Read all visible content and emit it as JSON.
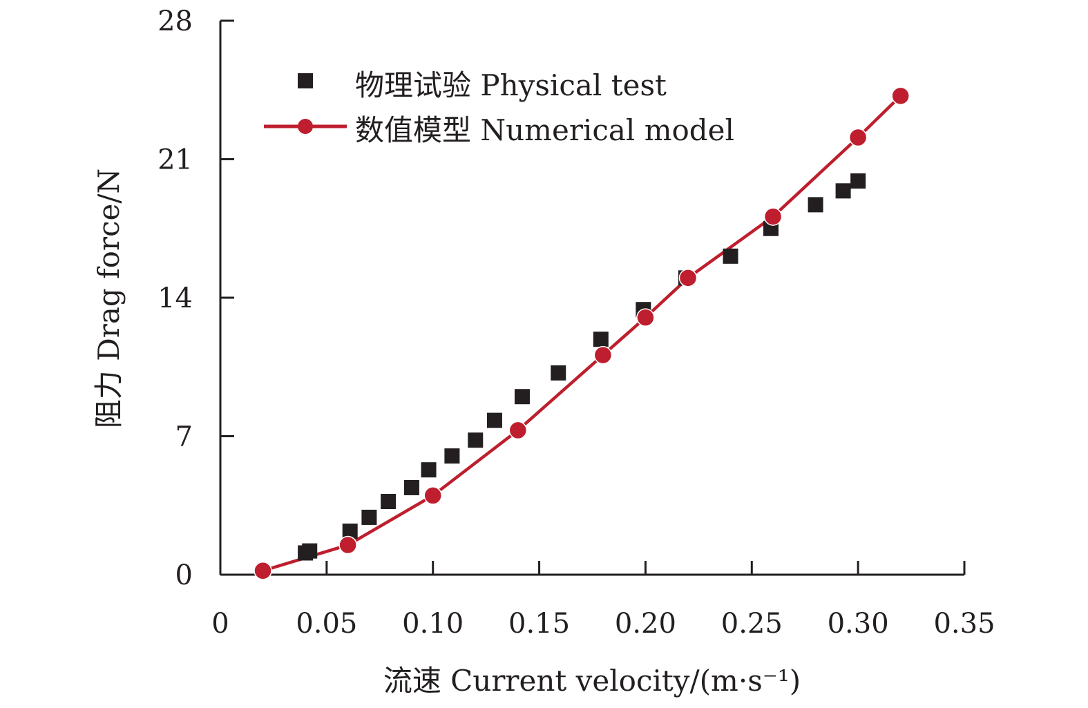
{
  "chart_data": {
    "type": "scatter",
    "title": "",
    "xlabel": "流速 Current velocity/(m·s⁻¹)",
    "ylabel": "阻力 Drag force/N",
    "xlim": [
      0,
      0.35
    ],
    "ylim": [
      0,
      28
    ],
    "xticks": [
      0,
      0.05,
      0.1,
      0.15,
      0.2,
      0.25,
      0.3,
      0.35
    ],
    "xtick_labels": [
      "0",
      "0.05",
      "0.10",
      "0.15",
      "0.20",
      "0.25",
      "0.30",
      "0.35"
    ],
    "yticks": [
      0,
      7,
      14,
      21,
      28
    ],
    "ytick_labels": [
      "0",
      "7",
      "14",
      "21",
      "28"
    ],
    "grid": false,
    "legend_position": "top-left",
    "series": [
      {
        "name": "物理试验 Physical test",
        "marker": "square",
        "line": false,
        "color": "#231f20",
        "x": [
          0.04,
          0.042,
          0.061,
          0.07,
          0.079,
          0.09,
          0.098,
          0.109,
          0.12,
          0.129,
          0.142,
          0.159,
          0.179,
          0.199,
          0.219,
          0.24,
          0.259,
          0.28,
          0.293,
          0.3
        ],
        "y": [
          1.1,
          1.2,
          2.2,
          2.9,
          3.7,
          4.4,
          5.3,
          6.0,
          6.8,
          7.8,
          9.0,
          10.2,
          11.9,
          13.4,
          15.0,
          16.1,
          17.5,
          18.7,
          19.4,
          19.9
        ]
      },
      {
        "name": "数值模型 Numerical model",
        "marker": "circle",
        "line": true,
        "color": "#be1e2d",
        "x": [
          0.02,
          0.06,
          0.1,
          0.14,
          0.18,
          0.2,
          0.22,
          0.26,
          0.3,
          0.32
        ],
        "y": [
          0.2,
          1.5,
          4.0,
          7.3,
          11.1,
          13.0,
          15.0,
          18.1,
          22.1,
          24.2
        ]
      }
    ]
  }
}
